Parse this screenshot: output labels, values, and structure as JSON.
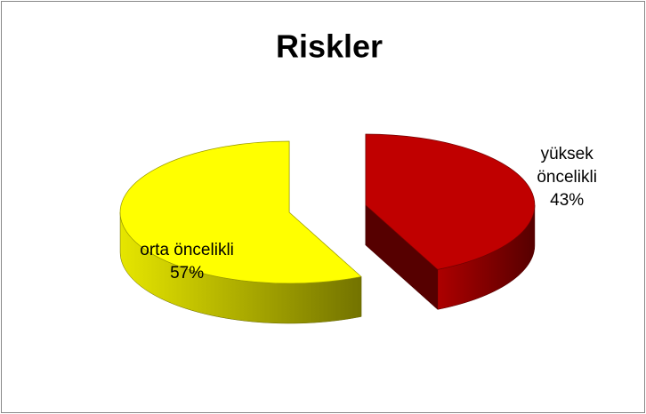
{
  "chart_data": {
    "type": "pie",
    "title": "Riskler",
    "categories": [
      "yüksek öncelikli",
      "orta öncelikli"
    ],
    "values": [
      43,
      57
    ],
    "value_labels": [
      "43%",
      "57%"
    ],
    "colors": [
      "#c00000",
      "#ffff00"
    ]
  }
}
